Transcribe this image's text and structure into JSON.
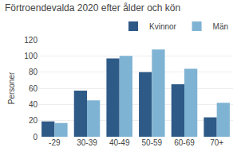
{
  "chart_data": {
    "type": "bar",
    "title": "Förtroendevalda 2020 efter ålder och kön",
    "ylabel": "Personer",
    "categories": [
      "-29",
      "30-39",
      "40-49",
      "50-59",
      "60-69",
      "70+"
    ],
    "series": [
      {
        "name": "Kvinnor",
        "color": "#2E5A87",
        "values": [
          19,
          57,
          97,
          80,
          65,
          24
        ]
      },
      {
        "name": "Män",
        "color": "#7FB3D3",
        "values": [
          17,
          45,
          100,
          108,
          84,
          42
        ]
      }
    ],
    "ylim": [
      0,
      120
    ],
    "yticks": [
      0,
      20,
      40,
      60,
      80,
      100,
      120
    ],
    "grid": true,
    "legend": "upper right"
  }
}
